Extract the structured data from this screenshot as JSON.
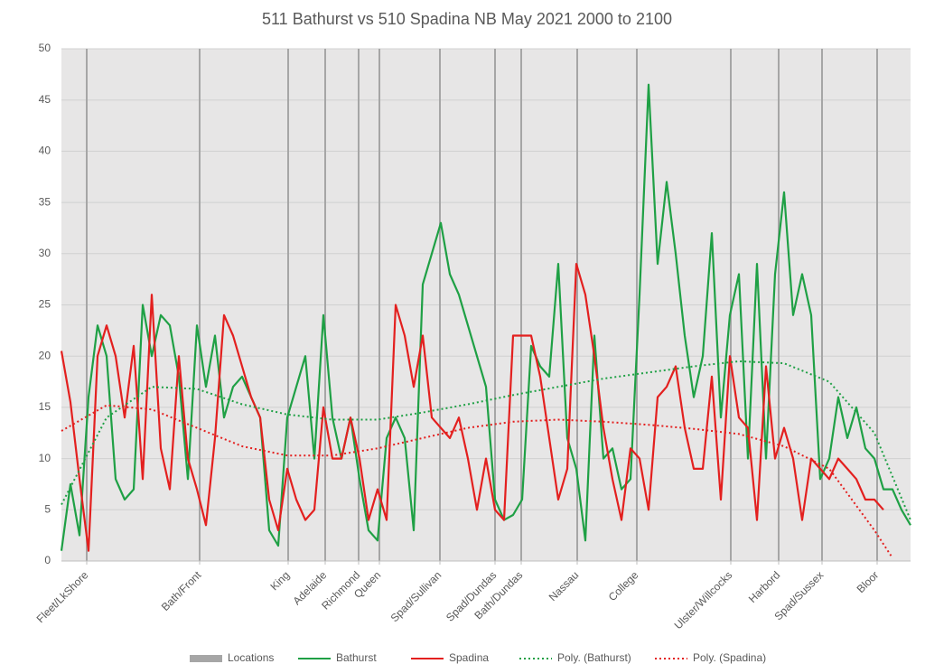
{
  "chart_data": {
    "type": "line",
    "title": "511 Bathurst vs 510 Spadina NB May 2021 2000 to 2100",
    "xlim": [
      0,
      94
    ],
    "ylim": [
      0,
      50
    ],
    "yticks": [
      0,
      5,
      10,
      15,
      20,
      25,
      30,
      35,
      40,
      45,
      50
    ],
    "grid": true,
    "legend": "bottom",
    "xticks": [
      {
        "value": 2.8,
        "label": "Fleet/LkShore"
      },
      {
        "value": 15.3,
        "label": "Bath/Front"
      },
      {
        "value": 25.1,
        "label": "King"
      },
      {
        "value": 29.2,
        "label": "Adelaide"
      },
      {
        "value": 32.9,
        "label": "Richmond"
      },
      {
        "value": 35.2,
        "label": "Queen"
      },
      {
        "value": 41.9,
        "label": "Spad/Sullivan"
      },
      {
        "value": 48,
        "label": "Spad/Dundas"
      },
      {
        "value": 50.9,
        "label": "Bath/Dundas"
      },
      {
        "value": 57.1,
        "label": "Nassau"
      },
      {
        "value": 63.7,
        "label": "College"
      },
      {
        "value": 74.1,
        "label": "Ulster/Willcocks"
      },
      {
        "value": 79.4,
        "label": "Harbord"
      },
      {
        "value": 84.2,
        "label": "Spad/Sussex"
      },
      {
        "value": 90.3,
        "label": "Bloor"
      }
    ],
    "series": [
      {
        "name": "Locations",
        "type": "bar",
        "color": "#a6a6a6",
        "x": [
          2.8,
          15.3,
          25.1,
          29.2,
          32.9,
          35.2,
          41.9,
          48,
          50.9,
          57.1,
          63.7,
          74.1,
          79.4,
          84.2,
          90.3
        ],
        "values": [
          50,
          50,
          50,
          50,
          50,
          50,
          50,
          50,
          50,
          50,
          50,
          50,
          50,
          50,
          50
        ]
      },
      {
        "name": "Bathurst",
        "type": "line",
        "color": "#1fa045",
        "x": [
          0,
          1,
          2,
          3,
          4,
          5,
          6,
          7,
          8,
          9,
          10,
          11,
          12,
          13,
          14,
          15,
          16,
          17,
          18,
          19,
          20,
          21,
          22,
          23,
          24,
          25,
          26,
          27,
          28,
          29,
          30,
          31,
          32,
          33,
          34,
          35,
          36,
          37,
          38,
          39,
          40,
          41,
          42,
          43,
          44,
          45,
          46,
          47,
          48,
          49,
          50,
          51,
          52,
          53,
          54,
          55,
          56,
          57,
          58,
          59,
          60,
          61,
          62,
          63,
          64,
          65,
          66,
          67,
          68,
          69,
          70,
          71,
          72,
          73,
          74,
          75,
          76,
          77,
          78,
          79,
          80,
          81,
          82,
          83,
          84,
          85,
          86,
          87,
          88,
          89,
          90,
          91,
          92,
          93,
          94
        ],
        "values": [
          1,
          7.5,
          2.5,
          16,
          23,
          20,
          8,
          6,
          7,
          25,
          20,
          24,
          23,
          18,
          8,
          23,
          17,
          22,
          14,
          17,
          18,
          16,
          14,
          3,
          1.5,
          14,
          17,
          20,
          10,
          24,
          14,
          10,
          14,
          8,
          3,
          2,
          12,
          14,
          12,
          3,
          27,
          30,
          33,
          28,
          26,
          23,
          20,
          17,
          6,
          4,
          4.5,
          6,
          21,
          19,
          18,
          29,
          12,
          9,
          2,
          22,
          10,
          11,
          7,
          8,
          26,
          46.5,
          29,
          37,
          30,
          22,
          16,
          20,
          32,
          14,
          24,
          28,
          10,
          29,
          10,
          28,
          36,
          24,
          28,
          24,
          8,
          10,
          16,
          12,
          15,
          11,
          10,
          7,
          7,
          5,
          3.5
        ]
      },
      {
        "name": "Spadina",
        "type": "line",
        "color": "#e3201f",
        "x": [
          0,
          1,
          2,
          3,
          4,
          5,
          6,
          7,
          8,
          9,
          10,
          11,
          12,
          13,
          14,
          15,
          16,
          17,
          18,
          19,
          20,
          21,
          22,
          23,
          24,
          25,
          26,
          27,
          28,
          29,
          30,
          31,
          32,
          33,
          34,
          35,
          36,
          37,
          38,
          39,
          40,
          41,
          42,
          43,
          44,
          45,
          46,
          47,
          48,
          49,
          50,
          51,
          52,
          53,
          54,
          55,
          56,
          57,
          58,
          59,
          60,
          61,
          62,
          63,
          64,
          65,
          66,
          67,
          68,
          69,
          70,
          71,
          72,
          73,
          74,
          75,
          76,
          77,
          78,
          79,
          80,
          81,
          82,
          83,
          84,
          85,
          86,
          87,
          88,
          89,
          90,
          91
        ],
        "values": [
          20.5,
          15.5,
          8,
          1,
          20,
          23,
          20,
          14,
          21,
          8,
          26,
          11,
          7,
          20,
          10,
          7,
          3.5,
          12,
          24,
          22,
          19,
          16,
          14,
          6,
          3,
          9,
          6,
          4,
          5,
          15,
          10,
          10,
          14,
          10,
          4,
          7,
          4,
          25,
          22,
          17,
          22,
          14,
          13,
          12,
          14,
          10,
          5,
          10,
          5,
          4,
          22,
          22,
          22,
          18,
          12,
          6,
          9,
          29,
          26,
          20,
          13,
          8,
          4,
          11,
          10,
          5,
          16,
          17,
          19,
          13,
          9,
          9,
          18,
          6,
          20,
          14,
          13,
          4,
          19,
          10,
          13,
          10,
          4,
          10,
          9,
          8,
          10,
          9,
          8,
          6,
          6,
          5
        ]
      },
      {
        "name": "Poly. (Bathurst)",
        "type": "trend",
        "color": "#1fa045",
        "x": [
          0,
          5,
          10,
          15,
          20,
          25,
          30,
          35,
          40,
          45,
          50,
          55,
          60,
          65,
          70,
          75,
          80,
          85,
          90,
          94
        ],
        "values": [
          5.5,
          14,
          17,
          16.8,
          15.3,
          14.3,
          13.8,
          13.8,
          14.5,
          15.3,
          16.2,
          17,
          17.8,
          18.4,
          19,
          19.5,
          19.3,
          17.5,
          12.5,
          4
        ]
      },
      {
        "name": "Poly. (Spadina)",
        "type": "trend",
        "color": "#e3201f",
        "x": [
          0,
          5,
          10,
          15,
          20,
          25,
          30,
          35,
          40,
          45,
          50,
          55,
          60,
          65,
          70,
          75,
          80,
          85,
          90,
          92
        ],
        "values": [
          12.7,
          15.2,
          14.8,
          13,
          11.2,
          10.3,
          10.3,
          11,
          12,
          13,
          13.6,
          13.8,
          13.6,
          13.3,
          12.9,
          12.4,
          11.2,
          9,
          3,
          0.3
        ]
      }
    ]
  }
}
